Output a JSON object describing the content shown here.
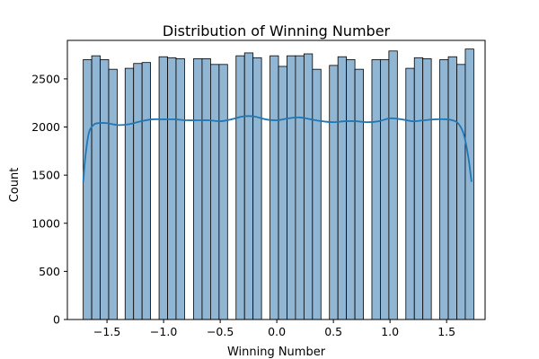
{
  "chart_data": {
    "type": "bar",
    "title": "Distribution of Winning Number",
    "xlabel": "Winning Number",
    "ylabel": "Count",
    "xlim": [
      -1.85,
      1.84
    ],
    "ylim": [
      0,
      2900
    ],
    "xticks": [
      -1.5,
      -1.0,
      -0.5,
      0.0,
      0.5,
      1.0,
      1.5
    ],
    "xtick_labels": [
      "−1.5",
      "−1.0",
      "−0.5",
      "0.0",
      "0.5",
      "1.0",
      "1.5"
    ],
    "yticks": [
      0,
      500,
      1000,
      1500,
      2000,
      2500
    ],
    "ytick_labels": [
      "0",
      "500",
      "1000",
      "1500",
      "2000",
      "2500"
    ],
    "grid": false,
    "bars": [
      {
        "x0": -1.71,
        "x1": -1.635,
        "count": 2700
      },
      {
        "x0": -1.635,
        "x1": -1.56,
        "count": 2740
      },
      {
        "x0": -1.56,
        "x1": -1.485,
        "count": 2700
      },
      {
        "x0": -1.485,
        "x1": -1.41,
        "count": 2600
      },
      {
        "x0": -1.415,
        "x1": -1.34,
        "count": 0
      },
      {
        "x0": -1.34,
        "x1": -1.265,
        "count": 2610
      },
      {
        "x0": -1.265,
        "x1": -1.19,
        "count": 2660
      },
      {
        "x0": -1.19,
        "x1": -1.115,
        "count": 2670
      },
      {
        "x0": -1.11,
        "x1": -1.04,
        "count": 0
      },
      {
        "x0": -1.04,
        "x1": -0.965,
        "count": 2730
      },
      {
        "x0": -0.965,
        "x1": -0.89,
        "count": 2720
      },
      {
        "x0": -0.89,
        "x1": -0.815,
        "count": 2710
      },
      {
        "x0": -0.81,
        "x1": -0.735,
        "count": 0
      },
      {
        "x0": -0.735,
        "x1": -0.66,
        "count": 2710
      },
      {
        "x0": -0.66,
        "x1": -0.585,
        "count": 2710
      },
      {
        "x0": -0.585,
        "x1": -0.51,
        "count": 2650
      },
      {
        "x0": -0.51,
        "x1": -0.435,
        "count": 2650
      },
      {
        "x0": -0.435,
        "x1": -0.36,
        "count": 0
      },
      {
        "x0": -0.36,
        "x1": -0.285,
        "count": 2740
      },
      {
        "x0": -0.285,
        "x1": -0.21,
        "count": 2770
      },
      {
        "x0": -0.21,
        "x1": -0.135,
        "count": 2720
      },
      {
        "x0": -0.13,
        "x1": -0.06,
        "count": 0
      },
      {
        "x0": -0.06,
        "x1": 0.015,
        "count": 2740
      },
      {
        "x0": 0.015,
        "x1": 0.09,
        "count": 2630
      },
      {
        "x0": 0.09,
        "x1": 0.165,
        "count": 2740
      },
      {
        "x0": 0.165,
        "x1": 0.24,
        "count": 2740
      },
      {
        "x0": 0.24,
        "x1": 0.315,
        "count": 2760
      },
      {
        "x0": 0.315,
        "x1": 0.39,
        "count": 2600
      },
      {
        "x0": 0.39,
        "x1": 0.465,
        "count": 0
      },
      {
        "x0": 0.465,
        "x1": 0.54,
        "count": 2640
      },
      {
        "x0": 0.54,
        "x1": 0.615,
        "count": 2730
      },
      {
        "x0": 0.615,
        "x1": 0.69,
        "count": 2700
      },
      {
        "x0": 0.69,
        "x1": 0.765,
        "count": 2600
      },
      {
        "x0": 0.765,
        "x1": 0.84,
        "count": 0
      },
      {
        "x0": 0.84,
        "x1": 0.915,
        "count": 2700
      },
      {
        "x0": 0.915,
        "x1": 0.99,
        "count": 2700
      },
      {
        "x0": 0.99,
        "x1": 1.065,
        "count": 2790
      },
      {
        "x0": 1.065,
        "x1": 1.14,
        "count": 0
      },
      {
        "x0": 1.14,
        "x1": 1.215,
        "count": 2610
      },
      {
        "x0": 1.215,
        "x1": 1.29,
        "count": 2720
      },
      {
        "x0": 1.29,
        "x1": 1.365,
        "count": 2710
      },
      {
        "x0": 1.365,
        "x1": 1.44,
        "count": 0
      },
      {
        "x0": 1.44,
        "x1": 1.515,
        "count": 2700
      },
      {
        "x0": 1.515,
        "x1": 1.59,
        "count": 2730
      },
      {
        "x0": 1.59,
        "x1": 1.665,
        "count": 2650
      },
      {
        "x0": 1.665,
        "x1": 1.74,
        "count": 2810
      }
    ],
    "kde": {
      "x": [
        -1.71,
        -1.69,
        -1.66,
        -1.62,
        -1.58,
        -1.5,
        -1.4,
        -1.3,
        -1.2,
        -1.1,
        -1.0,
        -0.9,
        -0.8,
        -0.7,
        -0.6,
        -0.5,
        -0.4,
        -0.3,
        -0.2,
        -0.1,
        0.0,
        0.1,
        0.2,
        0.3,
        0.4,
        0.5,
        0.6,
        0.7,
        0.8,
        0.9,
        1.0,
        1.1,
        1.2,
        1.3,
        1.4,
        1.5,
        1.55,
        1.6,
        1.65,
        1.69,
        1.72
      ],
      "y": [
        1430,
        1700,
        1940,
        2020,
        2040,
        2040,
        2020,
        2030,
        2060,
        2080,
        2080,
        2080,
        2070,
        2070,
        2070,
        2060,
        2080,
        2110,
        2110,
        2080,
        2070,
        2090,
        2100,
        2080,
        2060,
        2050,
        2060,
        2060,
        2050,
        2060,
        2090,
        2080,
        2060,
        2070,
        2080,
        2080,
        2070,
        2040,
        1930,
        1700,
        1430
      ]
    },
    "colors": {
      "bar_fill": "#91b6d4",
      "bar_edge": "#000000",
      "kde_line": "#1f77b4"
    }
  }
}
